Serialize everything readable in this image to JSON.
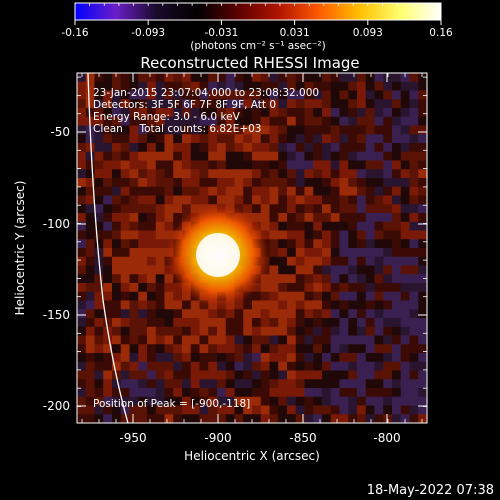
{
  "colorbar": {
    "tick_labels": [
      "-0.16",
      "-0.093",
      "-0.031",
      "0.031",
      "0.093",
      "0.16"
    ],
    "units_label": "(photons cm⁻² s⁻¹ asec⁻²)",
    "gradient_colors": [
      "#0000ff",
      "#6a1fc9",
      "#1a0a2a",
      "#000000",
      "#5a0000",
      "#b01400",
      "#ff5a00",
      "#ffc000",
      "#ffff70",
      "#ffffff"
    ]
  },
  "plot": {
    "title": "Reconstructed RHESSI Image",
    "info_lines": [
      "23-Jan-2015 23:07:04.000 to 23:08:32.000",
      "Detectors: 3F 5F 6F 7F 8F 9F, Att 0",
      "Energy Range: 3.0 - 6.0 keV",
      "Clean     Total counts: 6.82E+03"
    ],
    "peak_text": "Position of Peak = [-900,-118]",
    "xlabel": "Heliocentric X (arcsec)",
    "ylabel": "Heliocentric Y (arcsec)",
    "x_tick_labels": [
      "-950",
      "-900",
      "-850",
      "-800"
    ],
    "y_tick_labels": [
      "-50",
      "-100",
      "-150",
      "-200"
    ]
  },
  "footer": {
    "timestamp": "18-May-2022 07:38"
  }
}
